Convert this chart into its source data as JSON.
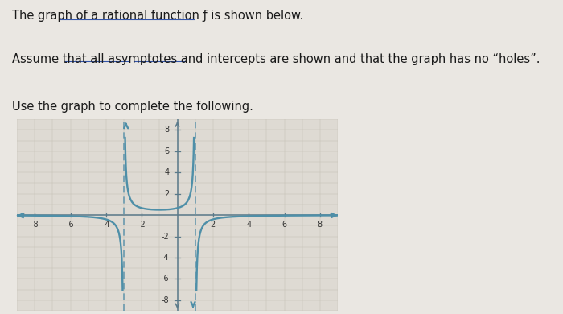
{
  "line1": "The graph of a rational function ƒ is shown below.",
  "line2": "Assume that all asymptotes and intercepts are shown and that the graph has no “holes”.",
  "line3": "Use the graph to complete the following.",
  "bg_color": "#eae7e2",
  "graph_bg": "#dedad3",
  "curve_color": "#4e8fa8",
  "asymptote_color": "#6a9aaf",
  "axis_color": "#5a7a8a",
  "grid_color": "#c5bfb4",
  "va1": -3,
  "va2": 1,
  "A": -2,
  "xmin": -9,
  "xmax": 9,
  "ymin": -9,
  "ymax": 9,
  "xticks": [
    -8,
    -6,
    -4,
    -2,
    2,
    4,
    6,
    8
  ],
  "yticks": [
    -8,
    -6,
    -4,
    -2,
    2,
    4,
    6,
    8
  ],
  "tick_fontsize": 7,
  "text_fontsize": 10.5
}
